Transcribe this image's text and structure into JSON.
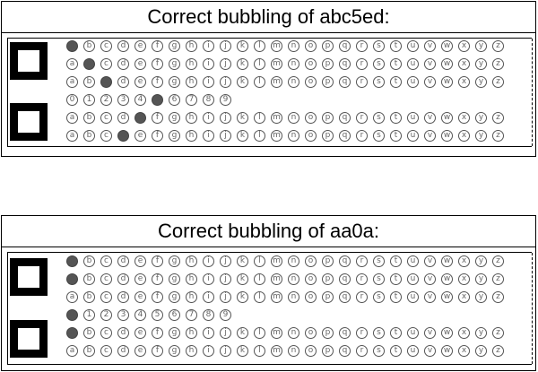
{
  "letters": [
    "a",
    "b",
    "c",
    "d",
    "e",
    "f",
    "g",
    "h",
    "i",
    "j",
    "k",
    "l",
    "m",
    "n",
    "o",
    "p",
    "q",
    "r",
    "s",
    "t",
    "u",
    "v",
    "w",
    "x",
    "y",
    "z"
  ],
  "digits": [
    "0",
    "1",
    "2",
    "3",
    "4",
    "5",
    "6",
    "7",
    "8",
    "9"
  ],
  "colors": {
    "fill": "#555555",
    "border": "#000000"
  },
  "panels": [
    {
      "title": "Correct bubbling of abc5ed:",
      "rows": [
        {
          "kind": "letters",
          "filled": 0
        },
        {
          "kind": "letters",
          "filled": 1
        },
        {
          "kind": "letters",
          "filled": 2
        },
        {
          "kind": "digits",
          "filled": 5
        },
        {
          "kind": "letters",
          "filled": 4
        },
        {
          "kind": "letters",
          "filled": 3
        }
      ]
    },
    {
      "title": "Correct bubbling of aa0a:",
      "rows": [
        {
          "kind": "letters",
          "filled": 0
        },
        {
          "kind": "letters",
          "filled": 0
        },
        {
          "kind": "letters",
          "filled": null
        },
        {
          "kind": "digits",
          "filled": 0
        },
        {
          "kind": "letters",
          "filled": 0
        },
        {
          "kind": "letters",
          "filled": null
        }
      ]
    }
  ]
}
